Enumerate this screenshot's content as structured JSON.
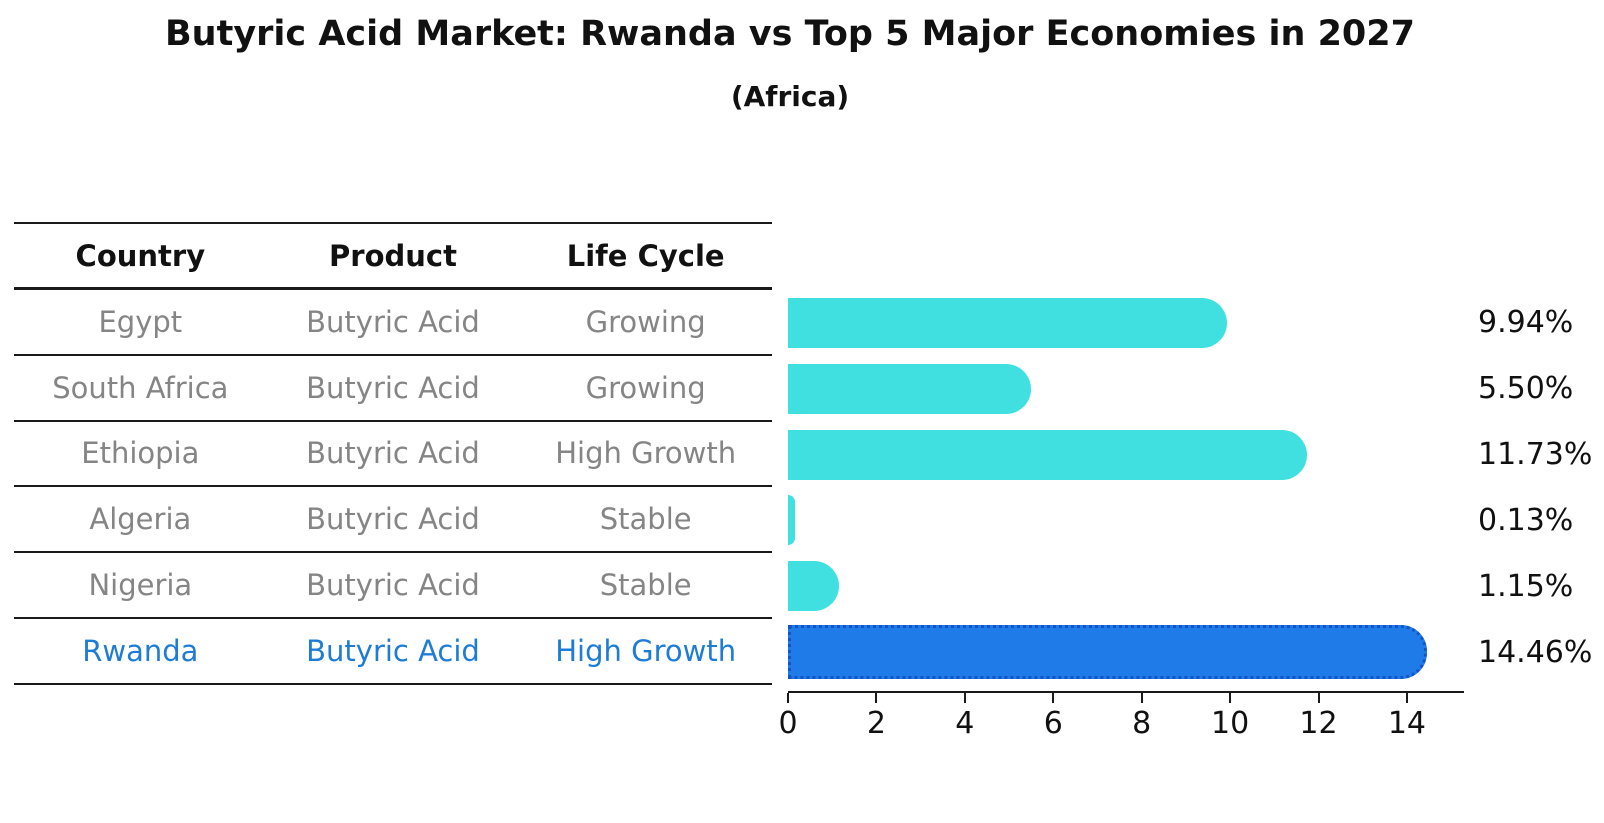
{
  "figure": {
    "title": "Butyric Acid Market: Rwanda vs Top 5 Major Economies in 2027",
    "subtitle": "(Africa)"
  },
  "table": {
    "headers": [
      "Country",
      "Product",
      "Life Cycle"
    ],
    "rows": [
      {
        "country": "Egypt",
        "product": "Butyric Acid",
        "life_cycle": "Growing",
        "highlight": false
      },
      {
        "country": "South Africa",
        "product": "Butyric Acid",
        "life_cycle": "Growing",
        "highlight": false
      },
      {
        "country": "Ethiopia",
        "product": "Butyric Acid",
        "life_cycle": "High Growth",
        "highlight": false
      },
      {
        "country": "Algeria",
        "product": "Butyric Acid",
        "life_cycle": "Stable",
        "highlight": false
      },
      {
        "country": "Nigeria",
        "product": "Butyric Acid",
        "life_cycle": "Stable",
        "highlight": false
      },
      {
        "country": "Rwanda",
        "product": "Butyric Acid",
        "life_cycle": "High Growth",
        "highlight": true
      }
    ]
  },
  "chart_data": {
    "type": "bar",
    "orientation": "horizontal",
    "title": "Butyric Acid Market: Rwanda vs Top 5 Major Economies in 2027",
    "subtitle": "(Africa)",
    "categories": [
      "Egypt",
      "South Africa",
      "Ethiopia",
      "Algeria",
      "Nigeria",
      "Rwanda"
    ],
    "values": [
      9.94,
      5.5,
      11.73,
      0.13,
      1.15,
      14.46
    ],
    "value_labels": [
      "9.94%",
      "5.50%",
      "11.73%",
      "0.13%",
      "1.15%",
      "14.46%"
    ],
    "highlight_index": 5,
    "xlim": [
      0,
      15.2
    ],
    "x_ticks": [
      0,
      2,
      4,
      6,
      8,
      10,
      12,
      14
    ],
    "grid": false,
    "legend": false
  },
  "colors": {
    "bar": "#40e0e0",
    "highlight_bar": "#1e7be8",
    "highlight_edge": "#1254c8",
    "highlight_text": "#1e7cd6",
    "row_text": "#858585",
    "heading_text": "#111111",
    "line": "#1a1a1a"
  }
}
